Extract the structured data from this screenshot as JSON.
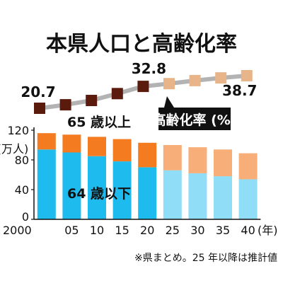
{
  "title": "本県人口と高齢化率",
  "note": "※県まとめ。25 年以降は推計値",
  "chart_data": [
    {
      "type": "bar",
      "stacked": true,
      "categories": [
        "2000",
        "05",
        "10",
        "15",
        "20",
        "25",
        "30",
        "35",
        "40"
      ],
      "x_unit": "(年)",
      "ylabel": "(万人)",
      "yticks": [
        "0",
        "40",
        "80",
        "120"
      ],
      "ylim": [
        0,
        120
      ],
      "series": [
        {
          "name": "64 歳以下",
          "values": [
            94,
            90,
            85,
            78,
            70,
            66,
            62,
            58,
            54
          ],
          "colors": {
            "actual": "#1EBBEE",
            "projected": "#8FDDF7"
          }
        },
        {
          "name": "65 歳以上",
          "values": [
            22,
            24,
            26,
            30,
            33,
            34,
            35,
            36,
            35
          ],
          "colors": {
            "actual": "#F47B20",
            "projected": "#F7AE78"
          }
        }
      ],
      "projected_from": "25"
    },
    {
      "type": "line",
      "name": "高齢化率 (%)",
      "categories": [
        "2000",
        "05",
        "10",
        "15",
        "20",
        "25",
        "30",
        "35",
        "40"
      ],
      "values": [
        20.7,
        22.6,
        25.0,
        28.8,
        32.8,
        34.3,
        36.0,
        37.5,
        38.7
      ],
      "data_labels": {
        "0": "20.7",
        "4": "32.8",
        "8": "38.7"
      },
      "colors": {
        "line": "#B3B3B3",
        "actual_marker": "#5A1A0C",
        "projected_marker": "#E8B58A"
      },
      "projected_from": "25"
    }
  ]
}
